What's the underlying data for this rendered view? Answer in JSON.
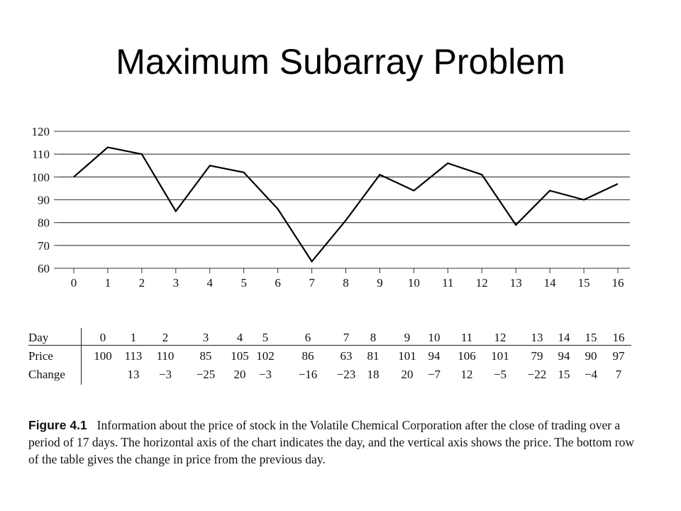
{
  "title": "Maximum Subarray Problem",
  "chart_data": {
    "type": "line",
    "x": [
      0,
      1,
      2,
      3,
      4,
      5,
      6,
      7,
      8,
      9,
      10,
      11,
      12,
      13,
      14,
      15,
      16
    ],
    "series": [
      {
        "values": [
          100,
          113,
          110,
          85,
          105,
          102,
          86,
          63,
          81,
          101,
          94,
          106,
          101,
          79,
          94,
          90,
          97
        ]
      }
    ],
    "x_ticks": [
      "0",
      "1",
      "2",
      "3",
      "4",
      "5",
      "6",
      "7",
      "8",
      "9",
      "10",
      "11",
      "12",
      "13",
      "14",
      "15",
      "16"
    ],
    "y_ticks": [
      "60",
      "70",
      "80",
      "90",
      "100",
      "110",
      "120"
    ],
    "ylim": [
      60,
      120
    ],
    "xlim": [
      0,
      16
    ],
    "grid": "horizontal"
  },
  "table": {
    "row_labels": [
      "Day",
      "Price",
      "Change"
    ],
    "days": [
      "0",
      "1",
      "2",
      "3",
      "4",
      "5",
      "6",
      "7",
      "8",
      "9",
      "10",
      "11",
      "12",
      "13",
      "14",
      "15",
      "16"
    ],
    "prices": [
      "100",
      "113",
      "110",
      "85",
      "105",
      "102",
      "86",
      "63",
      "81",
      "101",
      "94",
      "106",
      "101",
      "79",
      "94",
      "90",
      "97"
    ],
    "changes": [
      "",
      "13",
      "−3",
      "−25",
      "20",
      "−3",
      "−16",
      "−23",
      "18",
      "20",
      "−7",
      "12",
      "−5",
      "−22",
      "15",
      "−4",
      "7"
    ]
  },
  "caption": {
    "label": "Figure 4.1",
    "text": "Information about the price of stock in the Volatile Chemical Corporation after the close of trading over a period of 17 days. The horizontal axis of the chart indicates the day, and the vertical axis shows the price. The bottom row of the table gives the change in price from the previous day."
  }
}
